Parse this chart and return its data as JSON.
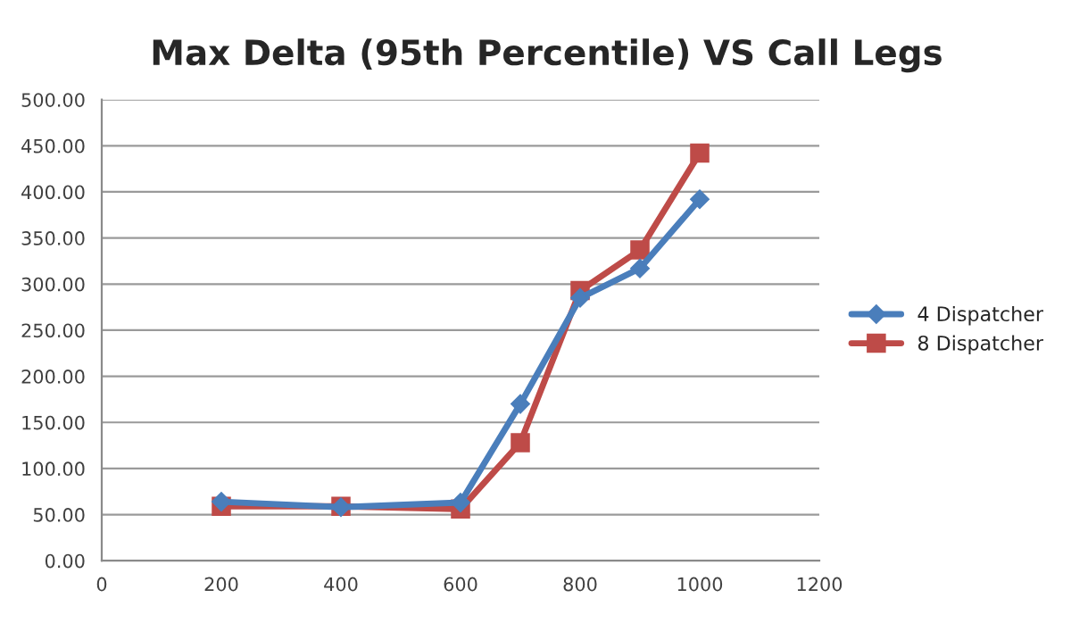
{
  "chart_data": {
    "type": "line",
    "title": "Max Delta (95th Percentile) VS Call Legs",
    "x": [
      200,
      400,
      600,
      700,
      800,
      900,
      1000
    ],
    "series": [
      {
        "name": "4 Dispatcher",
        "color": "#4a7ebb",
        "marker": "diamond",
        "values": [
          64,
          58,
          63,
          170,
          285,
          317,
          392
        ]
      },
      {
        "name": "8 Dispatcher",
        "color": "#be4b48",
        "marker": "square",
        "values": [
          59,
          59,
          56,
          128,
          293,
          337,
          442
        ]
      }
    ],
    "xlim": [
      0,
      1200
    ],
    "xticks": [
      0,
      200,
      400,
      600,
      800,
      1000,
      1200
    ],
    "ylim": [
      0,
      500
    ],
    "yticks": [
      {
        "value": 0,
        "label": "0.00"
      },
      {
        "value": 50,
        "label": "50.00"
      },
      {
        "value": 100,
        "label": "100.00"
      },
      {
        "value": 150,
        "label": "150.00"
      },
      {
        "value": 200,
        "label": "200.00"
      },
      {
        "value": 250,
        "label": "250.00"
      },
      {
        "value": 300,
        "label": "300.00"
      },
      {
        "value": 350,
        "label": "350.00"
      },
      {
        "value": 400,
        "label": "400.00"
      },
      {
        "value": 450,
        "label": "450.00"
      },
      {
        "value": 500,
        "label": "500.00"
      }
    ],
    "grid": "y",
    "legend": "right",
    "line_style": "solid"
  }
}
